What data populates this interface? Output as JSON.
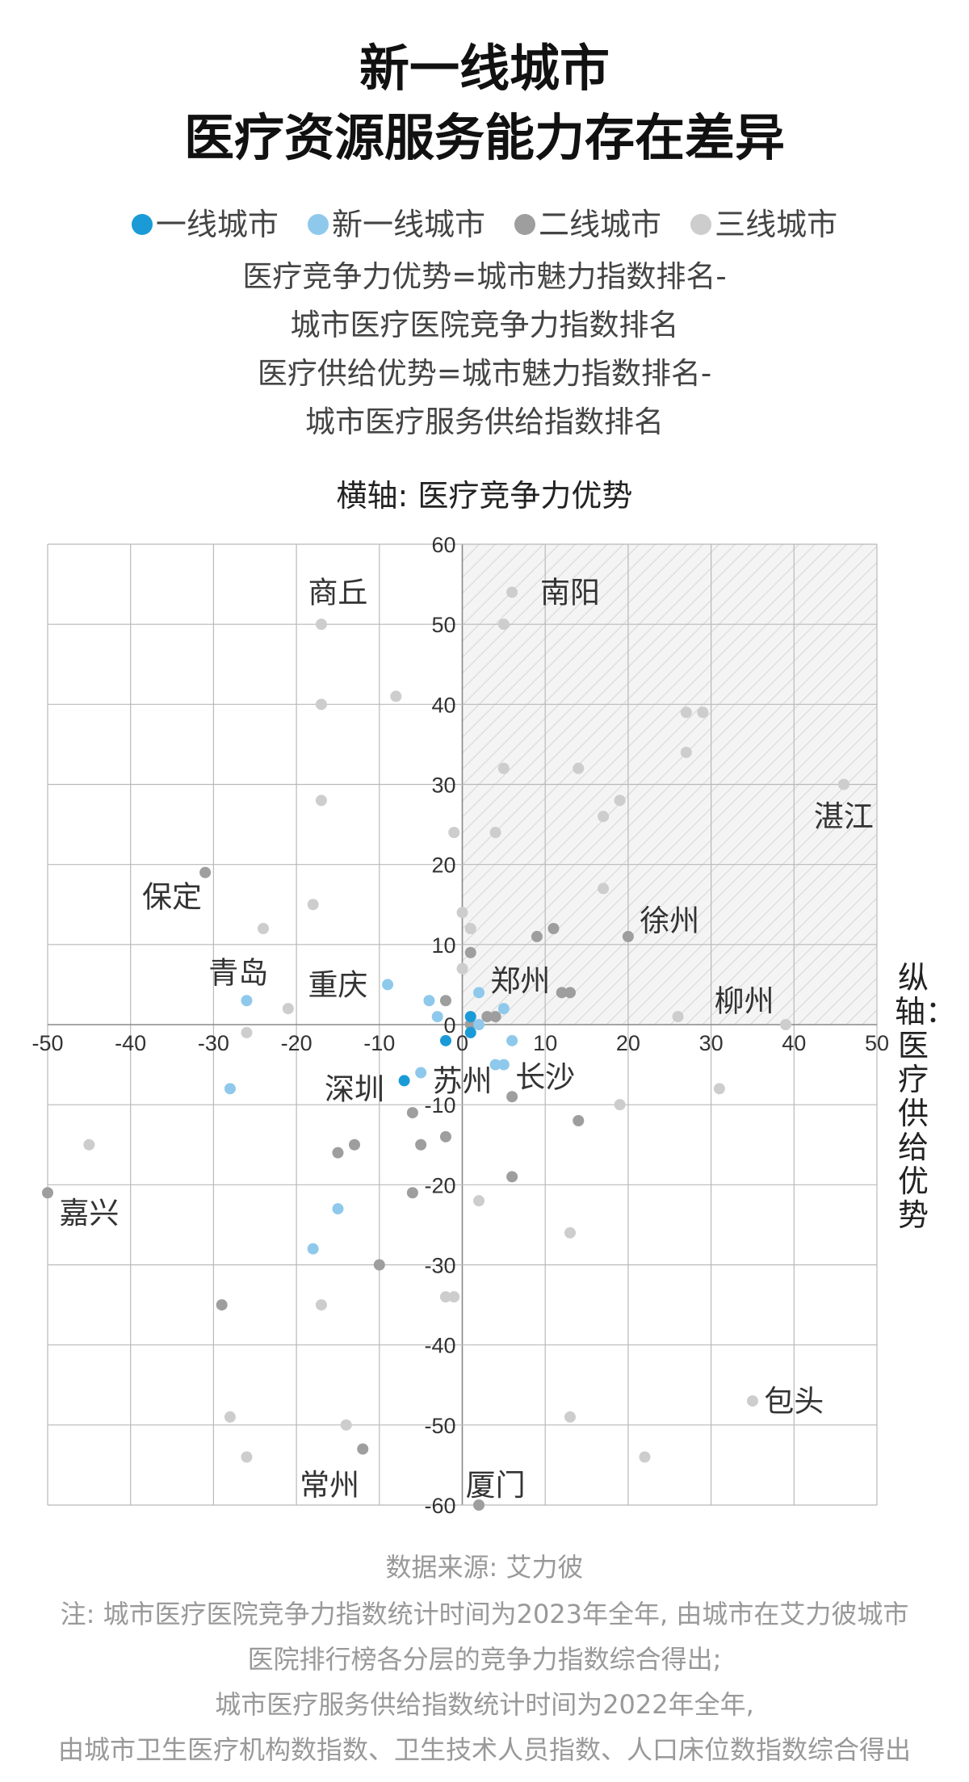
{
  "title_line1": "新一线城市",
  "title_line2": "医疗资源服务能力存在差异",
  "legend": [
    {
      "label": "一线城市",
      "color": "#1a9bd7"
    },
    {
      "label": "新一线城市",
      "color": "#8ec9ec"
    },
    {
      "label": "二线城市",
      "color": "#9e9e9e"
    },
    {
      "label": "三线城市",
      "color": "#cdcdcd"
    }
  ],
  "formula_lines": [
    "医疗竞争力优势=城市魅力指数排名-",
    "城市医疗医院竞争力指数排名",
    "医疗供给优势=城市魅力指数排名-",
    "城市医疗服务供给指数排名"
  ],
  "x_axis_title": "横轴: 医疗竞争力优势",
  "y_axis_title": "纵轴：医疗供给优势",
  "footer": {
    "source": "数据来源: 艾力彼",
    "notes": [
      "注: 城市医疗医院竞争力指数统计时间为2023年全年, 由城市在艾力彼城市",
      "医院排行榜各分层的竞争力指数综合得出;",
      "城市医疗服务供给指数统计时间为2022年全年,",
      "由城市卫生医疗机构数指数、卫生技术人员指数、人口床位数指数综合得出"
    ]
  },
  "chart_data": {
    "type": "scatter",
    "xlabel": "医疗竞争力优势",
    "ylabel": "医疗供给优势",
    "xlim": [
      -50,
      50
    ],
    "ylim": [
      -60,
      60
    ],
    "xticks": [
      -50,
      -40,
      -30,
      -20,
      -10,
      0,
      10,
      20,
      30,
      40,
      50
    ],
    "yticks": [
      60,
      50,
      40,
      30,
      20,
      10,
      0,
      -10,
      -20,
      -30,
      -40,
      -50,
      -60
    ],
    "grid": true,
    "highlight_quadrant": "top-right hatched",
    "series": [
      {
        "name": "一线城市",
        "color": "#1a9bd7",
        "points": [
          [
            1,
            1
          ],
          [
            1,
            -1
          ],
          [
            -2,
            -2
          ],
          [
            -7,
            -7
          ]
        ]
      },
      {
        "name": "新一线城市",
        "color": "#8ec9ec",
        "points": [
          [
            -26,
            3
          ],
          [
            -9,
            5
          ],
          [
            -4,
            3
          ],
          [
            -3,
            1
          ],
          [
            2,
            4
          ],
          [
            5,
            2
          ],
          [
            2,
            0
          ],
          [
            6,
            -2
          ],
          [
            4,
            -5
          ],
          [
            5,
            -5
          ],
          [
            -5,
            -6
          ],
          [
            -28,
            -8
          ],
          [
            -15,
            -23
          ],
          [
            -18,
            -28
          ]
        ]
      },
      {
        "name": "二线城市",
        "color": "#9e9e9e",
        "points": [
          [
            -31,
            19
          ],
          [
            1,
            9
          ],
          [
            9,
            11
          ],
          [
            11,
            12
          ],
          [
            20,
            11
          ],
          [
            -2,
            3
          ],
          [
            13,
            4
          ],
          [
            12,
            4
          ],
          [
            3,
            1
          ],
          [
            4,
            1
          ],
          [
            1,
            0
          ],
          [
            6,
            -9
          ],
          [
            14,
            -12
          ],
          [
            -6,
            -11
          ],
          [
            -2,
            -14
          ],
          [
            -5,
            -15
          ],
          [
            -13,
            -15
          ],
          [
            -15,
            -16
          ],
          [
            6,
            -19
          ],
          [
            -6,
            -21
          ],
          [
            -10,
            -30
          ],
          [
            -50,
            -21
          ],
          [
            -29,
            -35
          ],
          [
            -12,
            -53
          ],
          [
            2,
            -60
          ]
        ]
      },
      {
        "name": "三线城市",
        "color": "#cdcdcd",
        "points": [
          [
            6,
            54
          ],
          [
            5,
            50
          ],
          [
            -17,
            50
          ],
          [
            -8,
            41
          ],
          [
            -17,
            40
          ],
          [
            27,
            39
          ],
          [
            29,
            39
          ],
          [
            27,
            34
          ],
          [
            5,
            32
          ],
          [
            14,
            32
          ],
          [
            46,
            30
          ],
          [
            19,
            28
          ],
          [
            -17,
            28
          ],
          [
            17,
            26
          ],
          [
            -1,
            24
          ],
          [
            4,
            24
          ],
          [
            17,
            17
          ],
          [
            -18,
            15
          ],
          [
            0,
            14
          ],
          [
            1,
            12
          ],
          [
            -24,
            12
          ],
          [
            0,
            7
          ],
          [
            -21,
            2
          ],
          [
            26,
            1
          ],
          [
            39,
            0
          ],
          [
            -26,
            -1
          ],
          [
            31,
            -8
          ],
          [
            19,
            -10
          ],
          [
            -45,
            -15
          ],
          [
            2,
            -22
          ],
          [
            13,
            -26
          ],
          [
            -2,
            -34
          ],
          [
            -1,
            -34
          ],
          [
            -17,
            -35
          ],
          [
            35,
            -47
          ],
          [
            -28,
            -49
          ],
          [
            13,
            -49
          ],
          [
            -14,
            -50
          ],
          [
            -26,
            -54
          ],
          [
            22,
            -54
          ]
        ]
      }
    ],
    "annotations": [
      {
        "text": "南阳",
        "x": 13,
        "y": 54
      },
      {
        "text": "商丘",
        "x": -15,
        "y": 54
      },
      {
        "text": "湛江",
        "x": 46,
        "y": 26
      },
      {
        "text": "保定",
        "x": -35,
        "y": 16
      },
      {
        "text": "徐州",
        "x": 25,
        "y": 13
      },
      {
        "text": "青岛",
        "x": -27,
        "y": 6.5
      },
      {
        "text": "重庆",
        "x": -15,
        "y": 5
      },
      {
        "text": "郑州",
        "x": 7,
        "y": 5.5
      },
      {
        "text": "柳州",
        "x": 34,
        "y": 3
      },
      {
        "text": "深圳",
        "x": -13,
        "y": -8
      },
      {
        "text": "苏州",
        "x": 0,
        "y": -7
      },
      {
        "text": "长沙",
        "x": 10,
        "y": -6.5
      },
      {
        "text": "嘉兴",
        "x": -45,
        "y": -23.5
      },
      {
        "text": "包头",
        "x": 40,
        "y": -47
      },
      {
        "text": "常州",
        "x": -16,
        "y": -57.5
      },
      {
        "text": "厦门",
        "x": 4,
        "y": -57.5
      }
    ]
  }
}
